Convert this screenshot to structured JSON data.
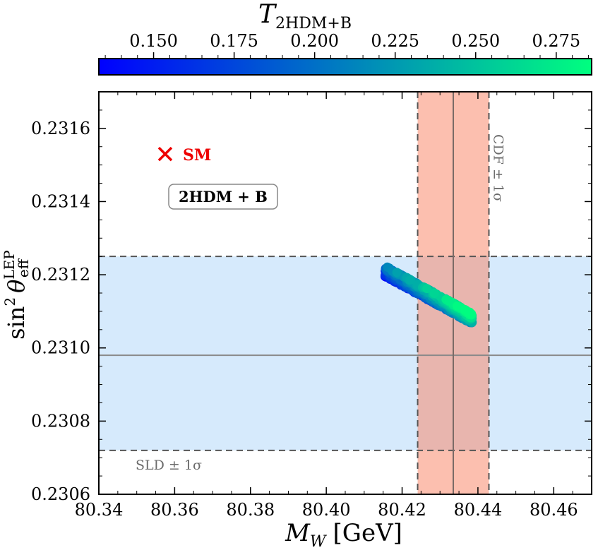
{
  "chart_data": {
    "type": "scatter",
    "xlabel": "M",
    "xlabel_sub": "W",
    "xlabel_unit": "[GeV]",
    "ylabel": "sin",
    "ylabel_sup": "2",
    "ylabel_theta": "θ",
    "ylabel_sub": "eff",
    "ylabel_sup2": "LEP",
    "xlim": [
      80.34,
      80.47
    ],
    "ylim": [
      0.2306,
      0.2317
    ],
    "xticks": [
      "80.34",
      "80.36",
      "80.38",
      "80.40",
      "80.42",
      "80.44",
      "80.46"
    ],
    "xtick_values": [
      80.34,
      80.36,
      80.38,
      80.4,
      80.42,
      80.44,
      80.46
    ],
    "yticks": [
      "0.2306",
      "0.2308",
      "0.2310",
      "0.2312",
      "0.2314",
      "0.2316"
    ],
    "ytick_values": [
      0.2306,
      0.2308,
      0.231,
      0.2312,
      0.2314,
      0.2316
    ],
    "colorbar": {
      "label": "T",
      "label_sub": "2HDM+B",
      "range": [
        0.133,
        0.286
      ],
      "ticks": [
        "0.150",
        "0.175",
        "0.200",
        "0.225",
        "0.250",
        "0.275"
      ],
      "tick_values": [
        0.15,
        0.175,
        0.2,
        0.225,
        0.25,
        0.275
      ],
      "color_low": "#0000ff",
      "color_high": "#00ff7f"
    },
    "bands": [
      {
        "name": "CDF",
        "label": "CDF ± 1σ",
        "orientation": "vertical",
        "center": 80.4335,
        "low": 80.4241,
        "high": 80.4429,
        "color": "#fa8060"
      },
      {
        "name": "SLD",
        "label": "SLD ± 1σ",
        "orientation": "horizontal",
        "center": 0.23098,
        "low": 0.23072,
        "high": 0.23125,
        "color": "#aed6fa"
      }
    ],
    "sm_point": {
      "label": "SM",
      "x": 80.3575,
      "y": 0.23153,
      "color": "#ee0000"
    },
    "annotation": "2HDM + B",
    "scatter_band": {
      "x_start": 80.4155,
      "y_start": 0.23121,
      "x_end": 80.4385,
      "y_end": 0.23108,
      "y_half_width": 1.5e-05,
      "t_min": 0.135,
      "t_max": 0.285
    }
  }
}
